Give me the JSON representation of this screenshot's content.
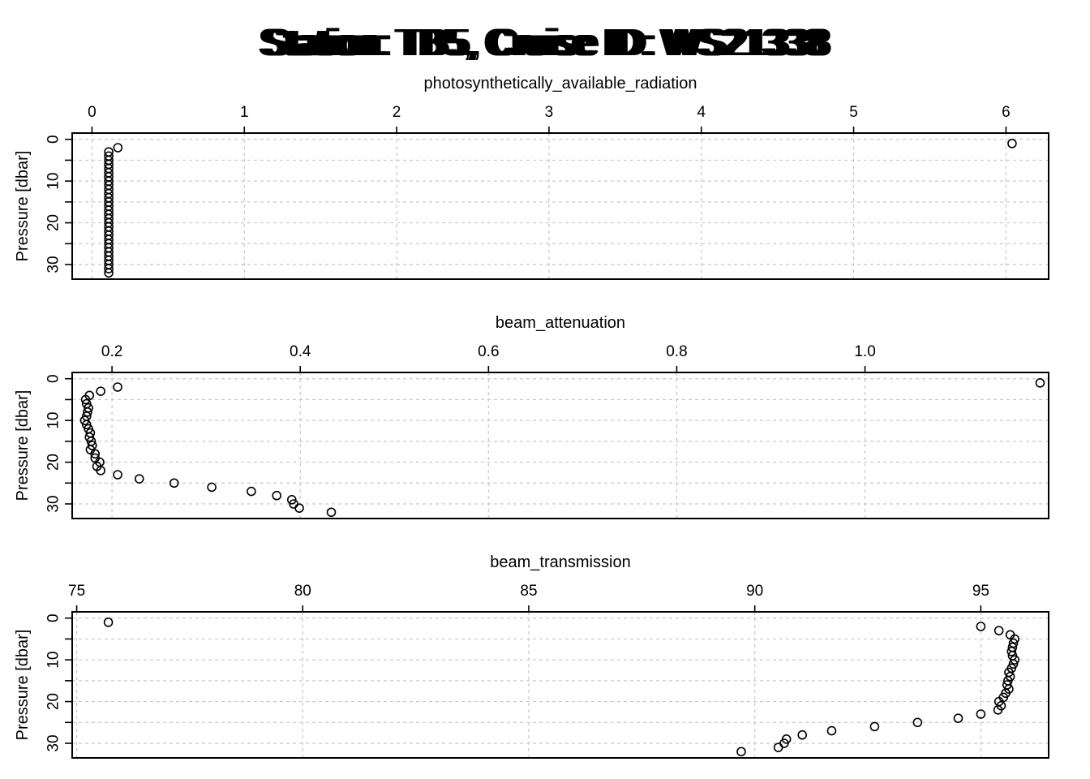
{
  "figure": {
    "title_overlay": [
      "Station: TB5, Cruise ID: WS21338",
      "Station: TB5, Cruise ID: WS21338",
      "Station: TB5, Cruise ID: WS21338",
      "Station: TB5, Cruise ID: WS21338",
      "Station: TB5, Cruise ID: WS21338",
      "Station: TB5, Cruise ID: WS21338"
    ]
  },
  "chart_data": [
    {
      "type": "scatter",
      "title": "photosynthetically_available_radiation",
      "xlabel": "photosynthetically_available_radiation",
      "ylabel": "Pressure [dbar]",
      "xlim": [
        -0.13,
        6.28
      ],
      "ylim": [
        33.5,
        -1.5
      ],
      "y_reversed": true,
      "grid": true,
      "x_ticks": [
        0,
        1,
        2,
        3,
        4,
        5,
        6
      ],
      "x_tick_labels": [
        "0",
        "1",
        "2",
        "3",
        "4",
        "5",
        "6"
      ],
      "y_ticks": [
        0,
        10,
        20,
        30
      ],
      "y_tick_labels": [
        "0",
        "10",
        "20",
        "30"
      ],
      "y_minor_ticks": [
        5,
        15,
        25
      ],
      "points": [
        [
          6.04,
          1
        ],
        [
          0.17,
          2
        ],
        [
          0.11,
          3
        ],
        [
          0.11,
          4
        ],
        [
          0.11,
          5
        ],
        [
          0.11,
          6
        ],
        [
          0.11,
          7
        ],
        [
          0.11,
          8
        ],
        [
          0.11,
          9
        ],
        [
          0.11,
          10
        ],
        [
          0.11,
          11
        ],
        [
          0.11,
          12
        ],
        [
          0.11,
          13
        ],
        [
          0.11,
          14
        ],
        [
          0.11,
          15
        ],
        [
          0.11,
          16
        ],
        [
          0.11,
          17
        ],
        [
          0.11,
          18
        ],
        [
          0.11,
          19
        ],
        [
          0.11,
          20
        ],
        [
          0.11,
          21
        ],
        [
          0.11,
          22
        ],
        [
          0.11,
          23
        ],
        [
          0.11,
          24
        ],
        [
          0.11,
          25
        ],
        [
          0.11,
          26
        ],
        [
          0.11,
          27
        ],
        [
          0.11,
          28
        ],
        [
          0.11,
          29
        ],
        [
          0.11,
          30
        ],
        [
          0.11,
          31
        ],
        [
          0.11,
          32
        ]
      ]
    },
    {
      "type": "scatter",
      "title": "beam_attenuation",
      "xlabel": "beam_attenuation",
      "ylabel": "Pressure [dbar]",
      "xlim": [
        0.1577,
        1.1951
      ],
      "ylim": [
        33.5,
        -1.5
      ],
      "y_reversed": true,
      "grid": true,
      "x_ticks": [
        0.2,
        0.4,
        0.6,
        0.8,
        1.0
      ],
      "x_tick_labels": [
        "0.2",
        "0.4",
        "0.6",
        "0.8",
        "1.0"
      ],
      "y_ticks": [
        0,
        10,
        20,
        30
      ],
      "y_tick_labels": [
        "0",
        "10",
        "20",
        "30"
      ],
      "y_minor_ticks": [
        5,
        15,
        25
      ],
      "points": [
        [
          1.186,
          1
        ],
        [
          0.206,
          2
        ],
        [
          0.188,
          3
        ],
        [
          0.176,
          4
        ],
        [
          0.172,
          5
        ],
        [
          0.173,
          6
        ],
        [
          0.175,
          7
        ],
        [
          0.174,
          8
        ],
        [
          0.173,
          9
        ],
        [
          0.171,
          10
        ],
        [
          0.173,
          11
        ],
        [
          0.175,
          12
        ],
        [
          0.177,
          13
        ],
        [
          0.176,
          14
        ],
        [
          0.178,
          15
        ],
        [
          0.179,
          16
        ],
        [
          0.177,
          17
        ],
        [
          0.182,
          18
        ],
        [
          0.182,
          19
        ],
        [
          0.187,
          20
        ],
        [
          0.184,
          21
        ],
        [
          0.188,
          22
        ],
        [
          0.206,
          23
        ],
        [
          0.229,
          24
        ],
        [
          0.266,
          25
        ],
        [
          0.306,
          26
        ],
        [
          0.348,
          27
        ],
        [
          0.375,
          28
        ],
        [
          0.391,
          29
        ],
        [
          0.393,
          30
        ],
        [
          0.399,
          31
        ],
        [
          0.433,
          32
        ]
      ]
    },
    {
      "type": "scatter",
      "title": "beam_transmission",
      "xlabel": "beam_transmission",
      "ylabel": "Pressure [dbar]",
      "xlim": [
        74.9,
        96.5
      ],
      "ylim": [
        33.5,
        -1.5
      ],
      "y_reversed": true,
      "grid": true,
      "x_ticks": [
        75,
        80,
        85,
        90,
        95
      ],
      "x_tick_labels": [
        "75",
        "80",
        "85",
        "90",
        "95"
      ],
      "y_ticks": [
        0,
        10,
        20,
        30
      ],
      "y_tick_labels": [
        "0",
        "10",
        "20",
        "30"
      ],
      "y_minor_ticks": [
        5,
        15,
        25
      ],
      "points": [
        [
          75.7,
          1
        ],
        [
          95.0,
          2
        ],
        [
          95.4,
          3
        ],
        [
          95.65,
          4
        ],
        [
          95.75,
          5
        ],
        [
          95.72,
          6
        ],
        [
          95.7,
          7
        ],
        [
          95.68,
          8
        ],
        [
          95.7,
          9
        ],
        [
          95.75,
          10
        ],
        [
          95.72,
          11
        ],
        [
          95.68,
          12
        ],
        [
          95.62,
          13
        ],
        [
          95.65,
          14
        ],
        [
          95.6,
          15
        ],
        [
          95.58,
          16
        ],
        [
          95.62,
          17
        ],
        [
          95.55,
          18
        ],
        [
          95.5,
          19
        ],
        [
          95.4,
          20
        ],
        [
          95.45,
          21
        ],
        [
          95.38,
          22
        ],
        [
          95.0,
          23
        ],
        [
          94.5,
          24
        ],
        [
          93.6,
          25
        ],
        [
          92.65,
          26
        ],
        [
          91.7,
          27
        ],
        [
          91.05,
          28
        ],
        [
          90.7,
          29
        ],
        [
          90.65,
          30
        ],
        [
          90.52,
          31
        ],
        [
          89.7,
          32
        ]
      ]
    }
  ]
}
